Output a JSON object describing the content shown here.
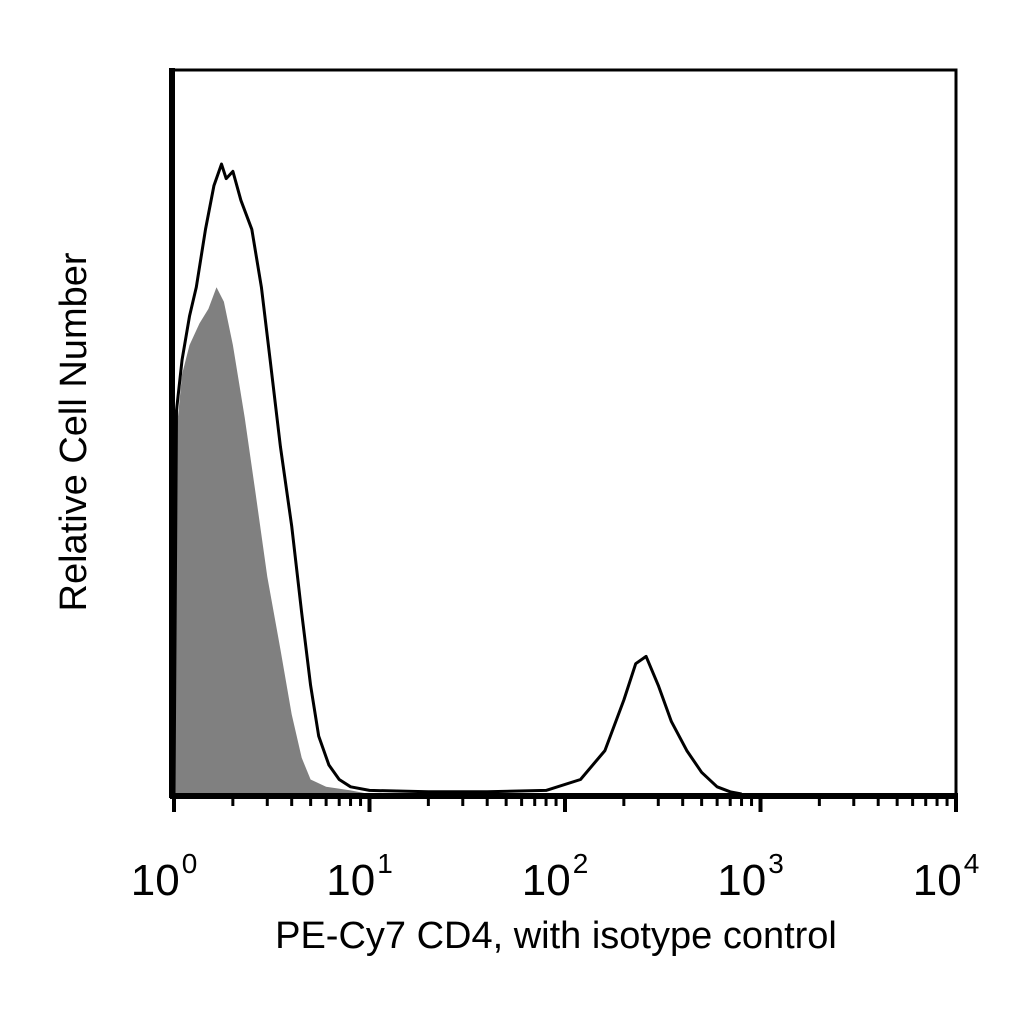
{
  "chart_data": {
    "type": "area",
    "title": "",
    "xlabel": "PE-Cy7 CD4, with isotype control",
    "ylabel": "Relative Cell Number",
    "x_scale": "log",
    "xlim": [
      1,
      10000
    ],
    "ylim": [
      0,
      100
    ],
    "grid": false,
    "x_tick_labels": [
      {
        "base": "10",
        "exp": "0",
        "value": 1
      },
      {
        "base": "10",
        "exp": "1",
        "value": 10
      },
      {
        "base": "10",
        "exp": "2",
        "value": 100
      },
      {
        "base": "10",
        "exp": "3",
        "value": 1000
      },
      {
        "base": "10",
        "exp": "4",
        "value": 10000
      }
    ],
    "series": [
      {
        "style": "filled",
        "color": "#808080",
        "points": [
          [
            1.0,
            0
          ],
          [
            1.03,
            50
          ],
          [
            1.1,
            58
          ],
          [
            1.2,
            62
          ],
          [
            1.35,
            65
          ],
          [
            1.5,
            67
          ],
          [
            1.65,
            70
          ],
          [
            1.8,
            68
          ],
          [
            2.0,
            62
          ],
          [
            2.3,
            52
          ],
          [
            2.6,
            42
          ],
          [
            3.0,
            30
          ],
          [
            3.5,
            20
          ],
          [
            4.0,
            11
          ],
          [
            4.5,
            5
          ],
          [
            5.0,
            2
          ],
          [
            6.0,
            1
          ],
          [
            8.0,
            0.5
          ],
          [
            10,
            0
          ]
        ]
      },
      {
        "style": "outline",
        "color": "#000000",
        "points": [
          [
            1.0,
            0
          ],
          [
            1.03,
            53
          ],
          [
            1.1,
            60
          ],
          [
            1.2,
            66
          ],
          [
            1.3,
            70
          ],
          [
            1.45,
            78
          ],
          [
            1.6,
            84
          ],
          [
            1.75,
            87
          ],
          [
            1.85,
            85
          ],
          [
            2.0,
            86
          ],
          [
            2.2,
            82
          ],
          [
            2.5,
            78
          ],
          [
            2.8,
            70
          ],
          [
            3.1,
            60
          ],
          [
            3.5,
            48
          ],
          [
            4.0,
            37
          ],
          [
            4.5,
            25
          ],
          [
            5.0,
            15
          ],
          [
            5.5,
            8
          ],
          [
            6.2,
            4
          ],
          [
            7.0,
            2
          ],
          [
            8.0,
            1
          ],
          [
            10,
            0.5
          ],
          [
            20,
            0.3
          ],
          [
            40,
            0.3
          ],
          [
            80,
            0.5
          ],
          [
            120,
            2
          ],
          [
            160,
            6
          ],
          [
            200,
            13
          ],
          [
            230,
            18
          ],
          [
            260,
            19
          ],
          [
            300,
            15
          ],
          [
            350,
            10
          ],
          [
            420,
            6
          ],
          [
            500,
            3
          ],
          [
            600,
            1
          ],
          [
            700,
            0.3
          ],
          [
            800,
            0
          ]
        ]
      }
    ]
  }
}
